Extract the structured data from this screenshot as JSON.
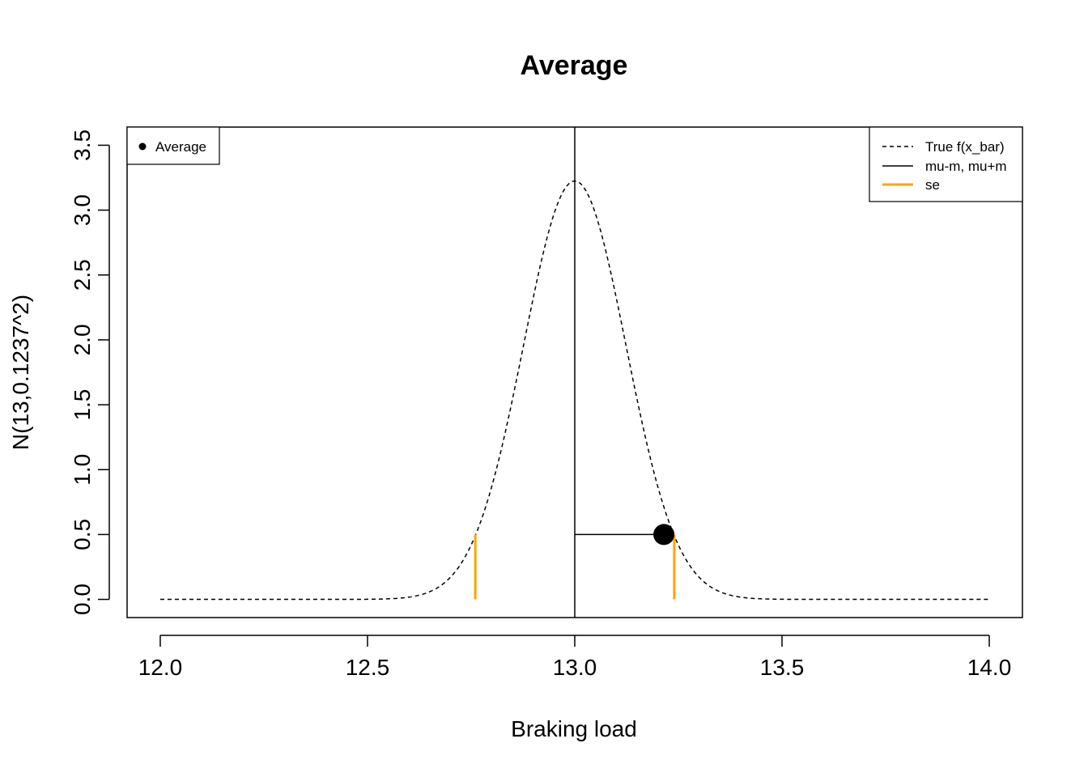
{
  "chart_data": {
    "type": "line",
    "title": "Average",
    "xlabel": "Braking load",
    "ylabel": "N(13,0.1237^2)",
    "xlim": [
      11.92,
      14.08
    ],
    "ylim": [
      -0.14,
      3.64
    ],
    "x_ticks": [
      "12.0",
      "12.5",
      "13.0",
      "13.5",
      "14.0"
    ],
    "y_ticks": [
      "0.0",
      "0.5",
      "1.0",
      "1.5",
      "2.0",
      "2.5",
      "3.0",
      "3.5"
    ],
    "density": {
      "mean": 13.0,
      "sd": 0.1237,
      "x_from": 12.0,
      "x_to": 14.0,
      "peak": 3.225
    },
    "series": [
      {
        "name": "True f(x_bar)",
        "style": "dashed",
        "color": "#000000"
      },
      {
        "name": "mu-m, mu+m",
        "style": "solid",
        "color": "#000000",
        "vline_x": 13.0,
        "segment": {
          "x0": 13.0,
          "x1": 13.215,
          "y": 0.5
        }
      },
      {
        "name": "se",
        "style": "solid",
        "color": "#FFA500",
        "segments": [
          {
            "x": 12.76,
            "y0": 0.0,
            "y1": 0.5
          },
          {
            "x": 13.24,
            "y0": 0.0,
            "y1": 0.5
          }
        ]
      }
    ],
    "points": [
      {
        "name": "Average",
        "x": 13.215,
        "y": 0.5
      }
    ],
    "legend_left": {
      "position": "top-left",
      "entries": [
        "Average"
      ]
    },
    "legend_right": {
      "position": "top-right",
      "entries": [
        "True f(x_bar)",
        "mu-m, mu+m",
        "se"
      ]
    }
  }
}
